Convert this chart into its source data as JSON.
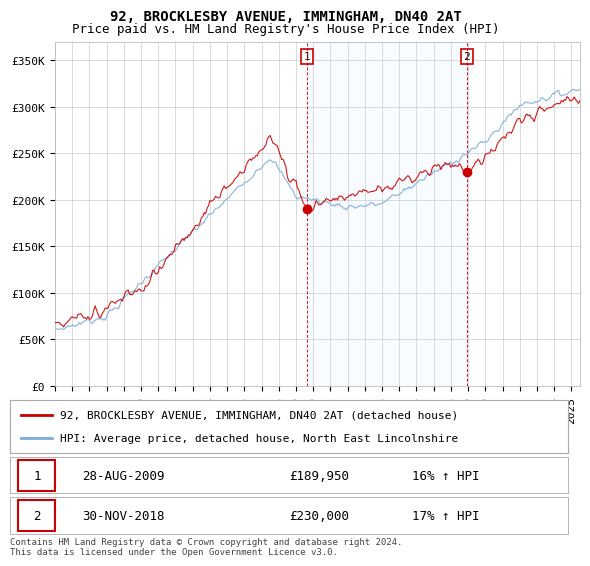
{
  "title": "92, BROCKLESBY AVENUE, IMMINGHAM, DN40 2AT",
  "subtitle": "Price paid vs. HM Land Registry's House Price Index (HPI)",
  "ylabel_ticks": [
    "£0",
    "£50K",
    "£100K",
    "£150K",
    "£200K",
    "£250K",
    "£300K",
    "£350K"
  ],
  "ytick_values": [
    0,
    50000,
    100000,
    150000,
    200000,
    250000,
    300000,
    350000
  ],
  "ylim": [
    0,
    370000
  ],
  "xlim_start": 1995.0,
  "xlim_end": 2025.5,
  "red_line_color": "#cc0000",
  "blue_line_color": "#7aacdc",
  "shade_color": "#ddeeff",
  "marker1_date": 2009.65,
  "marker1_price": 189950,
  "marker2_date": 2018.92,
  "marker2_price": 230000,
  "vline_color": "#cc0000",
  "legend_label_red": "92, BROCKLESBY AVENUE, IMMINGHAM, DN40 2AT (detached house)",
  "legend_label_blue": "HPI: Average price, detached house, North East Lincolnshire",
  "table_row1_num": "1",
  "table_row1_date": "28-AUG-2009",
  "table_row1_price": "£189,950",
  "table_row1_hpi": "16% ↑ HPI",
  "table_row2_num": "2",
  "table_row2_date": "30-NOV-2018",
  "table_row2_price": "£230,000",
  "table_row2_hpi": "17% ↑ HPI",
  "footnote": "Contains HM Land Registry data © Crown copyright and database right 2024.\nThis data is licensed under the Open Government Licence v3.0.",
  "background_color": "#ffffff",
  "grid_color": "#cccccc",
  "title_fontsize": 10,
  "subtitle_fontsize": 9,
  "tick_fontsize": 8
}
